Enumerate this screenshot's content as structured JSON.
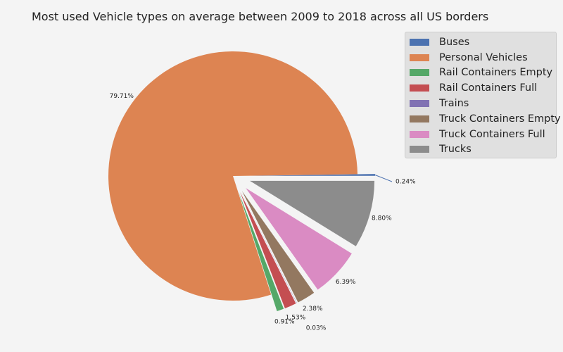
{
  "chart_data": {
    "type": "pie",
    "title": "Most used Vehicle types on average between 2009 to 2018 across all US borders",
    "legend_position": "top-right",
    "slices": [
      {
        "label": "Buses",
        "value": 0.24,
        "pct_label": "0.24%",
        "color": "#4c72b0",
        "exploded": true
      },
      {
        "label": "Personal Vehicles",
        "value": 79.71,
        "pct_label": "79.71%",
        "color": "#dd8452",
        "exploded": false
      },
      {
        "label": "Rail Containers Empty",
        "value": 0.91,
        "pct_label": "0.91%",
        "color": "#55a868",
        "exploded": true
      },
      {
        "label": "Rail Containers Full",
        "value": 1.53,
        "pct_label": "1.53%",
        "color": "#c44e52",
        "exploded": true
      },
      {
        "label": "Trains",
        "value": 0.03,
        "pct_label": "0.03%",
        "color": "#8172b3",
        "exploded": true
      },
      {
        "label": "Truck Containers Empty",
        "value": 2.38,
        "pct_label": "2.38%",
        "color": "#937860",
        "exploded": true
      },
      {
        "label": "Truck Containers Full",
        "value": 6.39,
        "pct_label": "6.39%",
        "color": "#da8bc3",
        "exploded": true
      },
      {
        "label": "Trucks",
        "value": 8.8,
        "pct_label": "8.80%",
        "color": "#8c8c8c",
        "exploded": true
      }
    ]
  }
}
